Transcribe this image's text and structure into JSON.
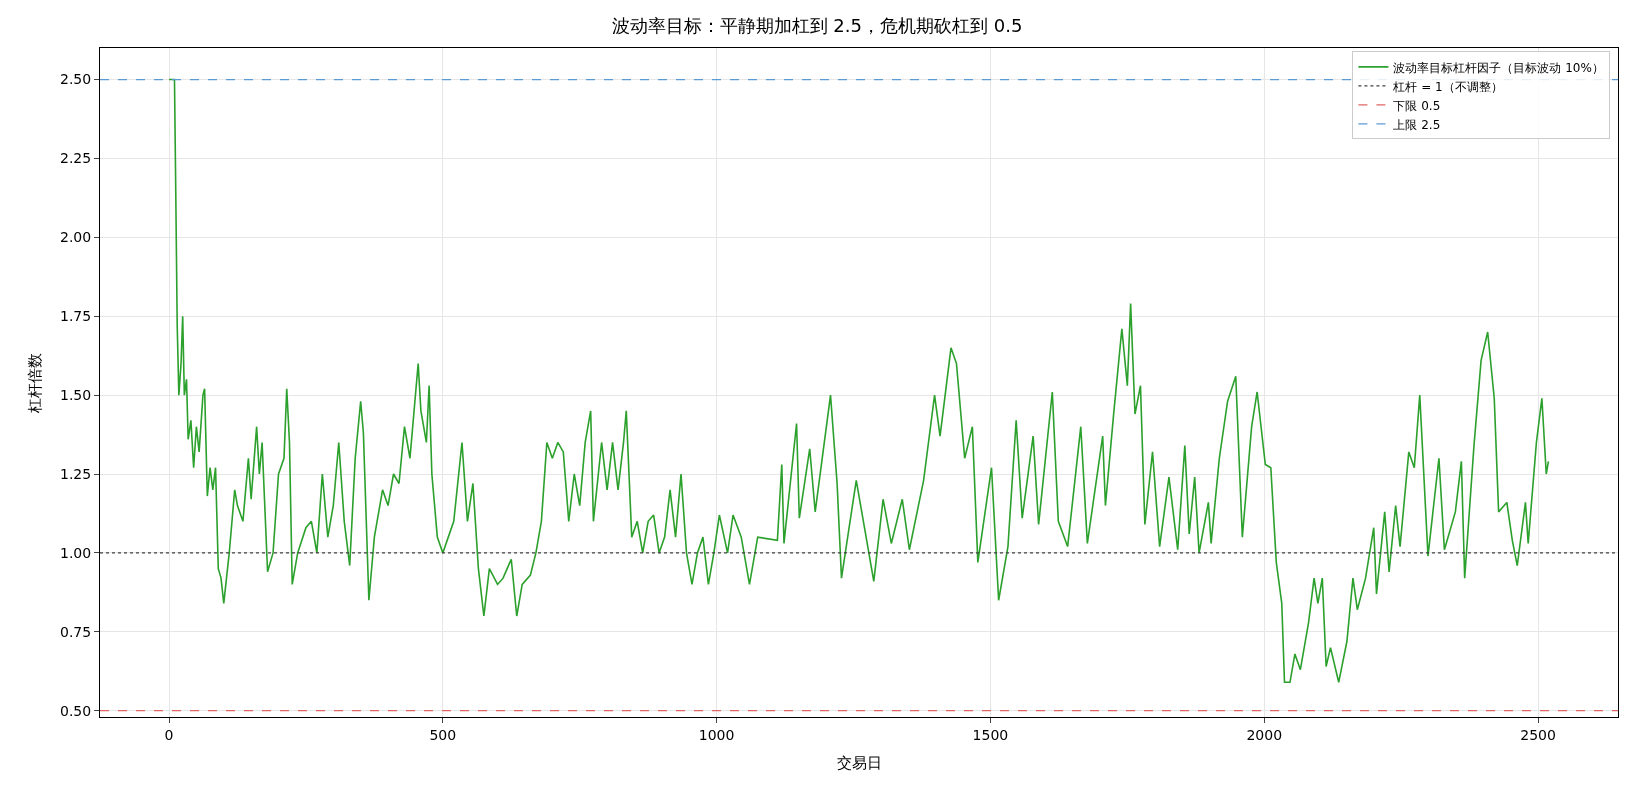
{
  "chart_data": {
    "type": "line",
    "title": "波动率目标：平静期加杠到 2.5，危机期砍杠到 0.5",
    "xlabel": "交易日",
    "ylabel": "杠杆倍数",
    "xlim": [
      -126,
      2646
    ],
    "ylim": [
      0.48,
      2.6
    ],
    "xticks": [
      0,
      500,
      1000,
      1500,
      2000,
      2500
    ],
    "yticks": [
      {
        "value": 0.5,
        "label": "0.50"
      },
      {
        "value": 0.75,
        "label": "0.75"
      },
      {
        "value": 1.0,
        "label": "1.00"
      },
      {
        "value": 1.25,
        "label": "1.25"
      },
      {
        "value": 1.5,
        "label": "1.50"
      },
      {
        "value": 1.75,
        "label": "1.75"
      },
      {
        "value": 2.0,
        "label": "2.00"
      },
      {
        "value": 2.25,
        "label": "2.25"
      },
      {
        "value": 2.5,
        "label": "2.50"
      }
    ],
    "grid": true,
    "legend": "top right",
    "line_style": "solid",
    "marker": "none",
    "series": [
      {
        "name": "波动率目标杠杆因子（目标波动 10%）",
        "color": "#2ca02c",
        "x": [
          0,
          10,
          12,
          15,
          18,
          22,
          25,
          28,
          32,
          35,
          40,
          45,
          50,
          55,
          62,
          65,
          70,
          75,
          80,
          85,
          90,
          95,
          100,
          110,
          120,
          125,
          135,
          145,
          150,
          160,
          165,
          170,
          180,
          190,
          200,
          210,
          215,
          220,
          225,
          235,
          250,
          260,
          270,
          280,
          290,
          300,
          310,
          320,
          330,
          340,
          350,
          355,
          365,
          375,
          390,
          400,
          410,
          420,
          430,
          440,
          455,
          460,
          470,
          475,
          480,
          490,
          500,
          510,
          520,
          535,
          545,
          555,
          565,
          575,
          585,
          600,
          610,
          625,
          635,
          645,
          660,
          670,
          680,
          690,
          700,
          710,
          720,
          730,
          740,
          750,
          760,
          770,
          775,
          790,
          800,
          810,
          820,
          830,
          835,
          845,
          855,
          865,
          875,
          885,
          895,
          905,
          915,
          925,
          935,
          945,
          955,
          965,
          975,
          985,
          995,
          1005,
          1020,
          1030,
          1045,
          1060,
          1075,
          1111,
          1119,
          1123,
          1146,
          1151,
          1170,
          1180,
          1208,
          1220,
          1228,
          1255,
          1287,
          1304,
          1319,
          1339,
          1352,
          1378,
          1398,
          1408,
          1428,
          1438,
          1453,
          1467,
          1477,
          1502,
          1515,
          1532,
          1547,
          1558,
          1578,
          1588,
          1613,
          1624,
          1641,
          1665,
          1677,
          1705,
          1710,
          1725,
          1740,
          1750,
          1756,
          1764,
          1774,
          1782,
          1796,
          1809,
          1826,
          1842,
          1855,
          1863,
          1873,
          1881,
          1898,
          1903,
          1918,
          1933,
          1948,
          1960,
          1977,
          1987,
          2002,
          2012,
          2022,
          2032,
          2037,
          2047,
          2056,
          2066,
          2081,
          2091,
          2098,
          2106,
          2113,
          2121,
          2136,
          2151,
          2162,
          2170,
          2185,
          2200,
          2205,
          2220,
          2228,
          2240,
          2248,
          2264,
          2274,
          2284,
          2299,
          2319,
          2329,
          2349,
          2360,
          2366,
          2383,
          2396,
          2408,
          2420,
          2428,
          2443,
          2453,
          2462,
          2477,
          2482,
          2497,
          2507,
          2515,
          2519
        ],
        "values": [
          2.5,
          2.5,
          2.2,
          1.72,
          1.5,
          1.6,
          1.75,
          1.5,
          1.55,
          1.36,
          1.42,
          1.27,
          1.4,
          1.32,
          1.5,
          1.52,
          1.18,
          1.27,
          1.2,
          1.27,
          0.95,
          0.92,
          0.84,
          1.0,
          1.2,
          1.15,
          1.1,
          1.3,
          1.17,
          1.4,
          1.25,
          1.35,
          0.94,
          1.0,
          1.25,
          1.3,
          1.52,
          1.35,
          0.9,
          1.0,
          1.08,
          1.1,
          1.0,
          1.25,
          1.05,
          1.15,
          1.35,
          1.1,
          0.96,
          1.3,
          1.48,
          1.38,
          0.85,
          1.05,
          1.2,
          1.15,
          1.25,
          1.22,
          1.4,
          1.3,
          1.6,
          1.45,
          1.35,
          1.53,
          1.25,
          1.05,
          1.0,
          1.05,
          1.1,
          1.35,
          1.1,
          1.22,
          0.95,
          0.8,
          0.95,
          0.9,
          0.92,
          0.98,
          0.8,
          0.9,
          0.93,
          1.0,
          1.1,
          1.35,
          1.3,
          1.35,
          1.32,
          1.1,
          1.25,
          1.15,
          1.35,
          1.45,
          1.1,
          1.35,
          1.2,
          1.35,
          1.2,
          1.35,
          1.45,
          1.05,
          1.1,
          1.0,
          1.1,
          1.12,
          1.0,
          1.05,
          1.2,
          1.05,
          1.25,
          1.0,
          0.9,
          1.0,
          1.05,
          0.9,
          1.0,
          1.12,
          1.0,
          1.12,
          1.05,
          0.9,
          1.05,
          1.04,
          1.28,
          1.03,
          1.41,
          1.11,
          1.33,
          1.13,
          1.5,
          1.22,
          0.92,
          1.23,
          0.91,
          1.17,
          1.03,
          1.17,
          1.01,
          1.23,
          1.5,
          1.37,
          1.65,
          1.6,
          1.3,
          1.4,
          0.97,
          1.27,
          0.85,
          1.02,
          1.42,
          1.11,
          1.37,
          1.09,
          1.51,
          1.1,
          1.02,
          1.4,
          1.03,
          1.37,
          1.15,
          1.44,
          1.71,
          1.53,
          1.79,
          1.44,
          1.53,
          1.09,
          1.32,
          1.02,
          1.24,
          1.01,
          1.34,
          1.06,
          1.24,
          1.0,
          1.16,
          1.03,
          1.3,
          1.48,
          1.56,
          1.05,
          1.4,
          1.51,
          1.28,
          1.27,
          0.97,
          0.84,
          0.59,
          0.59,
          0.68,
          0.63,
          0.78,
          0.92,
          0.84,
          0.92,
          0.64,
          0.7,
          0.59,
          0.72,
          0.92,
          0.82,
          0.92,
          1.08,
          0.87,
          1.13,
          0.94,
          1.15,
          1.02,
          1.32,
          1.27,
          1.5,
          0.99,
          1.3,
          1.01,
          1.13,
          1.29,
          0.92,
          1.34,
          1.61,
          1.7,
          1.49,
          1.13,
          1.16,
          1.04,
          0.96,
          1.16,
          1.03,
          1.35,
          1.49,
          1.25,
          1.29
        ]
      }
    ],
    "ref_lines": [
      {
        "axis": "y",
        "value": 1,
        "label": "杠杆 = 1（不调整）",
        "color": "#404040",
        "line_style": "dotted"
      },
      {
        "axis": "y",
        "value": 0.5,
        "label": "下限 0.5",
        "color": "#e06666",
        "line_style": "dashed"
      },
      {
        "axis": "y",
        "value": 2.5,
        "label": "上限 2.5",
        "color": "#5b9bd5",
        "line_style": "dashed"
      }
    ]
  }
}
